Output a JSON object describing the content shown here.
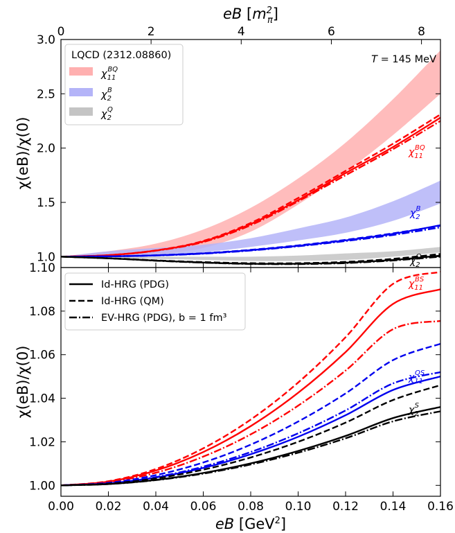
{
  "colors": {
    "red": "#ff0000",
    "blue": "#0000ee",
    "black": "#000000",
    "band_red": "#ffb0b0",
    "band_blue": "#b4b4f8",
    "band_gray": "#c4c4c4"
  },
  "top_axis": {
    "label": "eB [m_π^2]",
    "ticks": [
      "0",
      "2",
      "4",
      "6",
      "8"
    ]
  },
  "bottom_axis": {
    "label": "eB [GeV²]",
    "ticks": [
      "0.00",
      "0.02",
      "0.04",
      "0.06",
      "0.08",
      "0.10",
      "0.12",
      "0.14",
      "0.16"
    ]
  },
  "ylabel": "χ(eB)/χ(0)",
  "chart_data": [
    {
      "type": "line",
      "panel": "top",
      "xlim": [
        0,
        0.16
      ],
      "ylim": [
        0.9,
        3.0
      ],
      "yticks": [
        "1.0",
        "1.5",
        "2.0",
        "2.5",
        "3.0"
      ],
      "temperature_label": "T = 145 MeV",
      "legend": {
        "title": "LQCD (2312.08860)",
        "placement": "top-left",
        "entries": [
          "χ₁₁^BQ",
          "χ₂^B",
          "χ₂^Q"
        ]
      },
      "x": [
        0,
        0.02,
        0.04,
        0.06,
        0.08,
        0.1,
        0.12,
        0.14,
        0.16
      ],
      "bands": [
        {
          "name": "χ₁₁^BQ",
          "color": "band_red",
          "lower": [
            1.0,
            1.0,
            1.02,
            1.08,
            1.23,
            1.48,
            1.78,
            2.12,
            2.5
          ],
          "upper": [
            1.0,
            1.05,
            1.12,
            1.25,
            1.45,
            1.72,
            2.05,
            2.45,
            2.9
          ]
        },
        {
          "name": "χ₂^B",
          "color": "band_blue",
          "lower": [
            1.0,
            1.0,
            1.01,
            1.04,
            1.09,
            1.15,
            1.22,
            1.33,
            1.49
          ],
          "upper": [
            1.0,
            1.05,
            1.08,
            1.11,
            1.17,
            1.26,
            1.36,
            1.51,
            1.7
          ]
        },
        {
          "name": "χ₂^Q",
          "color": "band_gray",
          "lower": [
            1.0,
            0.99,
            0.98,
            0.97,
            0.96,
            0.96,
            0.97,
            1.0,
            1.04
          ],
          "upper": [
            1.0,
            1.0,
            1.0,
            1.0,
            1.0,
            1.01,
            1.03,
            1.05,
            1.09
          ]
        }
      ],
      "series": [
        {
          "name": "χ₁₁^BQ",
          "color": "red",
          "style": "solid",
          "values": [
            1.0,
            1.014,
            1.057,
            1.14,
            1.3,
            1.52,
            1.77,
            2.01,
            2.28
          ]
        },
        {
          "name": "χ₁₁^BQ",
          "color": "red",
          "style": "dashed",
          "values": [
            1.0,
            1.014,
            1.058,
            1.145,
            1.31,
            1.54,
            1.79,
            2.04,
            2.31
          ]
        },
        {
          "name": "χ₁₁^BQ",
          "color": "red",
          "style": "dashdot",
          "values": [
            1.0,
            1.013,
            1.055,
            1.135,
            1.29,
            1.51,
            1.75,
            1.99,
            2.25
          ]
        },
        {
          "name": "χ₂^B",
          "color": "blue",
          "style": "solid",
          "values": [
            1.0,
            1.003,
            1.012,
            1.03,
            1.06,
            1.1,
            1.15,
            1.21,
            1.29
          ]
        },
        {
          "name": "χ₂^B",
          "color": "blue",
          "style": "dashed",
          "values": [
            1.0,
            1.003,
            1.013,
            1.032,
            1.063,
            1.104,
            1.155,
            1.215,
            1.285
          ]
        },
        {
          "name": "χ₂^B",
          "color": "blue",
          "style": "dashdot",
          "values": [
            1.0,
            1.003,
            1.011,
            1.028,
            1.057,
            1.096,
            1.144,
            1.2,
            1.27
          ]
        },
        {
          "name": "χ₂^Q",
          "color": "black",
          "style": "solid",
          "values": [
            1.0,
            0.985,
            0.964,
            0.946,
            0.935,
            0.935,
            0.945,
            0.97,
            1.01
          ]
        },
        {
          "name": "χ₂^Q",
          "color": "black",
          "style": "dashed",
          "values": [
            1.0,
            0.986,
            0.966,
            0.95,
            0.94,
            0.94,
            0.952,
            0.98,
            1.025
          ]
        },
        {
          "name": "χ₂^Q",
          "color": "black",
          "style": "dashdot",
          "values": [
            1.0,
            0.985,
            0.963,
            0.945,
            0.933,
            0.932,
            0.941,
            0.965,
            1.0
          ]
        }
      ],
      "labels": [
        "χ₁₁^BQ",
        "χ₂^B",
        "χ₂^Q"
      ]
    },
    {
      "type": "line",
      "panel": "bottom",
      "xlim": [
        0,
        0.16
      ],
      "ylim": [
        0.995,
        1.1
      ],
      "xlabel": "eB [GeV²]",
      "yticks": [
        "1.00",
        "1.02",
        "1.04",
        "1.06",
        "1.08",
        "1.10"
      ],
      "legend": {
        "placement": "top-left",
        "entries": [
          "Id-HRG (PDG)",
          "Id-HRG (QM)",
          "EV-HRG (PDG), b = 1 fm³"
        ]
      },
      "x": [
        0,
        0.02,
        0.04,
        0.06,
        0.08,
        0.1,
        0.12,
        0.14,
        0.16
      ],
      "series": [
        {
          "name": "χ₁₁^BS",
          "color": "red",
          "style": "solid",
          "values": [
            1.0,
            1.0017,
            1.0068,
            1.0153,
            1.0272,
            1.0425,
            1.0612,
            1.0833,
            1.09
          ]
        },
        {
          "name": "χ₁₁^BS",
          "color": "red",
          "style": "dashed",
          "values": [
            1.0,
            1.0019,
            1.0075,
            1.017,
            1.0302,
            1.0472,
            1.068,
            1.0925,
            1.098
          ]
        },
        {
          "name": "χ₁₁^BS",
          "color": "red",
          "style": "dashdot",
          "values": [
            1.0,
            1.0015,
            1.0058,
            1.0132,
            1.0234,
            1.0366,
            1.0527,
            1.0717,
            1.0755
          ]
        },
        {
          "name": "χ₁₁^QS",
          "color": "blue",
          "style": "solid",
          "values": [
            1.0,
            1.0009,
            1.0036,
            1.008,
            1.0143,
            1.0223,
            1.0322,
            1.0438,
            1.05
          ]
        },
        {
          "name": "χ₁₁^QS",
          "color": "blue",
          "style": "dashed",
          "values": [
            1.0,
            1.0012,
            1.0047,
            1.0105,
            1.0187,
            1.0293,
            1.0422,
            1.0575,
            1.065
          ]
        },
        {
          "name": "χ₁₁^QS",
          "color": "blue",
          "style": "dashdot",
          "values": [
            1.0,
            1.0009,
            1.0038,
            1.0086,
            1.0153,
            1.0239,
            1.0344,
            1.0468,
            1.052
          ]
        },
        {
          "name": "χ₂^S",
          "color": "black",
          "style": "solid",
          "values": [
            1.0,
            1.0006,
            1.0025,
            1.0057,
            1.0101,
            1.0158,
            1.0227,
            1.0309,
            1.036
          ]
        },
        {
          "name": "χ₂^S",
          "color": "black",
          "style": "dashed",
          "values": [
            1.0,
            1.0008,
            1.0032,
            1.0072,
            1.0128,
            1.02,
            1.0288,
            1.0392,
            1.046
          ]
        },
        {
          "name": "χ₂^S",
          "color": "black",
          "style": "dashdot",
          "values": [
            1.0,
            1.0006,
            1.0024,
            1.0054,
            1.0096,
            1.015,
            1.0216,
            1.0294,
            1.034
          ]
        }
      ],
      "labels": [
        "χ₁₁^BS",
        "χ₁₁^QS",
        "χ₂^S"
      ]
    }
  ]
}
